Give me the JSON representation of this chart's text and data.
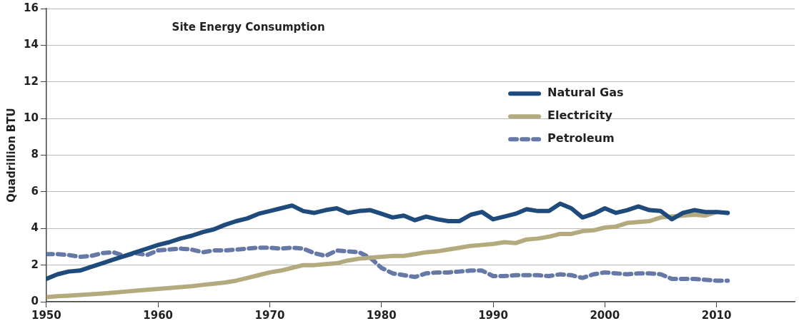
{
  "chart_data": {
    "type": "line",
    "title": "Site Energy Consumption",
    "ylabel": "Quadrillion BTU",
    "x": [
      1950,
      1951,
      1952,
      1953,
      1954,
      1955,
      1956,
      1957,
      1958,
      1959,
      1960,
      1961,
      1962,
      1963,
      1964,
      1965,
      1966,
      1967,
      1968,
      1969,
      1970,
      1971,
      1972,
      1973,
      1974,
      1975,
      1976,
      1977,
      1978,
      1979,
      1980,
      1981,
      1982,
      1983,
      1984,
      1985,
      1986,
      1987,
      1988,
      1989,
      1990,
      1991,
      1992,
      1993,
      1994,
      1995,
      1996,
      1997,
      1998,
      1999,
      2000,
      2001,
      2002,
      2003,
      2004,
      2005,
      2006,
      2007,
      2008,
      2009,
      2010,
      2011
    ],
    "series": [
      {
        "name": "Natural Gas",
        "color": "#1f4a7c",
        "line_style": "solid",
        "values": [
          1.25,
          1.5,
          1.65,
          1.7,
          1.9,
          2.1,
          2.3,
          2.5,
          2.7,
          2.9,
          3.1,
          3.25,
          3.45,
          3.6,
          3.8,
          3.95,
          4.2,
          4.4,
          4.55,
          4.8,
          4.95,
          5.1,
          5.25,
          4.95,
          4.85,
          5.0,
          5.1,
          4.85,
          4.95,
          5.0,
          4.8,
          4.6,
          4.7,
          4.45,
          4.65,
          4.5,
          4.4,
          4.4,
          4.75,
          4.9,
          4.5,
          4.65,
          4.8,
          5.05,
          4.95,
          4.95,
          5.35,
          5.1,
          4.6,
          4.8,
          5.1,
          4.85,
          5.0,
          5.2,
          5.0,
          4.95,
          4.5,
          4.85,
          5.0,
          4.9,
          4.9,
          4.85
        ]
      },
      {
        "name": "Electricity",
        "color": "#b3aa7e",
        "line_style": "solid",
        "values": [
          0.25,
          0.3,
          0.33,
          0.37,
          0.41,
          0.45,
          0.5,
          0.55,
          0.6,
          0.65,
          0.7,
          0.75,
          0.8,
          0.85,
          0.92,
          0.98,
          1.05,
          1.15,
          1.3,
          1.45,
          1.6,
          1.7,
          1.85,
          2.0,
          2.0,
          2.05,
          2.1,
          2.25,
          2.35,
          2.4,
          2.45,
          2.5,
          2.5,
          2.6,
          2.7,
          2.75,
          2.85,
          2.95,
          3.05,
          3.1,
          3.15,
          3.25,
          3.2,
          3.4,
          3.45,
          3.55,
          3.7,
          3.7,
          3.85,
          3.9,
          4.05,
          4.1,
          4.3,
          4.35,
          4.4,
          4.6,
          4.65,
          4.7,
          4.75,
          4.7,
          4.9,
          4.85
        ]
      },
      {
        "name": "Petroleum",
        "color": "#6678a6",
        "line_style": "dashed",
        "values": [
          2.6,
          2.6,
          2.55,
          2.45,
          2.5,
          2.65,
          2.7,
          2.5,
          2.65,
          2.55,
          2.8,
          2.85,
          2.9,
          2.85,
          2.7,
          2.8,
          2.8,
          2.85,
          2.9,
          2.95,
          2.95,
          2.9,
          2.95,
          2.9,
          2.65,
          2.5,
          2.8,
          2.75,
          2.7,
          2.4,
          1.85,
          1.55,
          1.45,
          1.35,
          1.55,
          1.6,
          1.6,
          1.65,
          1.7,
          1.7,
          1.4,
          1.4,
          1.45,
          1.45,
          1.45,
          1.4,
          1.5,
          1.45,
          1.3,
          1.5,
          1.6,
          1.55,
          1.5,
          1.55,
          1.55,
          1.5,
          1.25,
          1.25,
          1.25,
          1.2,
          1.15,
          1.15
        ]
      }
    ],
    "xlim": [
      1950,
      2017
    ],
    "xticks": [
      1950,
      1960,
      1970,
      1980,
      1990,
      2000,
      2010
    ],
    "ylim": [
      0,
      16
    ],
    "yticks": [
      0,
      2,
      4,
      6,
      8,
      10,
      12,
      14,
      16
    ],
    "grid": "y",
    "legend": "right",
    "marker": "none"
  }
}
